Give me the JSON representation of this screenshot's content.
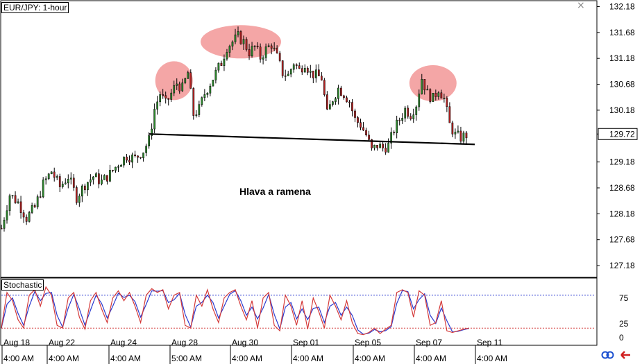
{
  "chart_data": {
    "type": "candlestick",
    "title": "EUR/JPY: 1-hour",
    "annotation": "Hlava a ramena",
    "ylim": [
      126.98,
      132.28
    ],
    "y_ticks": [
      132.18,
      131.68,
      131.18,
      130.68,
      130.18,
      129.72,
      129.18,
      128.68,
      128.18,
      127.68,
      127.18
    ],
    "current_price": 129.72,
    "x_tick_dates": [
      "Aug 18",
      "Aug 22",
      "Aug 24",
      "Aug 28",
      "Aug 30",
      "Sep 01",
      "Sep 05",
      "Sep 07",
      "Sep 11"
    ],
    "x_tick_times": [
      "4:00 AM",
      "4:00 AM",
      "4:00 AM",
      "5:00 AM",
      "4:00 AM",
      "4:00 AM",
      "4:00 AM",
      "4:00 AM",
      "4:00 AM"
    ],
    "close_path": [
      [
        0,
        127.9
      ],
      [
        3,
        128.55
      ],
      [
        6,
        128.4
      ],
      [
        9,
        128.1
      ],
      [
        12,
        128.3
      ],
      [
        15,
        128.75
      ],
      [
        18,
        129.0
      ],
      [
        21,
        128.7
      ],
      [
        24,
        128.9
      ],
      [
        27,
        128.5
      ],
      [
        30,
        128.75
      ],
      [
        33,
        128.9
      ],
      [
        36,
        128.8
      ],
      [
        39,
        128.95
      ],
      [
        42,
        129.15
      ],
      [
        45,
        129.3
      ],
      [
        48,
        129.25
      ],
      [
        51,
        129.4
      ],
      [
        53,
        129.6
      ],
      [
        55,
        130.2
      ],
      [
        57,
        130.5
      ],
      [
        59,
        130.3
      ],
      [
        61,
        130.5
      ],
      [
        63,
        130.7
      ],
      [
        65,
        130.6
      ],
      [
        67,
        130.9
      ],
      [
        69,
        130.1
      ],
      [
        71,
        130.2
      ],
      [
        73,
        130.5
      ],
      [
        75,
        130.7
      ],
      [
        77,
        130.9
      ],
      [
        79,
        131.1
      ],
      [
        81,
        131.4
      ],
      [
        83,
        131.5
      ],
      [
        85,
        131.6
      ],
      [
        87,
        131.5
      ],
      [
        89,
        131.3
      ],
      [
        91,
        131.4
      ],
      [
        93,
        131.2
      ],
      [
        95,
        131.35
      ],
      [
        97,
        131.45
      ],
      [
        99,
        131.2
      ],
      [
        101,
        130.9
      ],
      [
        103,
        130.85
      ],
      [
        105,
        131.1
      ],
      [
        107,
        130.95
      ],
      [
        109,
        131.1
      ],
      [
        111,
        130.9
      ],
      [
        113,
        130.85
      ],
      [
        115,
        130.8
      ],
      [
        117,
        130.1
      ],
      [
        119,
        130.4
      ],
      [
        121,
        130.6
      ],
      [
        123,
        130.5
      ],
      [
        125,
        130.35
      ],
      [
        127,
        130.0
      ],
      [
        129,
        129.9
      ],
      [
        131,
        129.7
      ],
      [
        133,
        129.4
      ],
      [
        135,
        129.5
      ],
      [
        137,
        129.45
      ],
      [
        139,
        129.5
      ],
      [
        141,
        129.8
      ],
      [
        143,
        130.0
      ],
      [
        145,
        130.2
      ],
      [
        147,
        130.1
      ],
      [
        149,
        130.3
      ],
      [
        151,
        130.8
      ],
      [
        153,
        130.5
      ],
      [
        155,
        130.4
      ],
      [
        157,
        130.6
      ],
      [
        159,
        130.4
      ],
      [
        161,
        129.9
      ],
      [
        163,
        129.7
      ],
      [
        165,
        129.65
      ],
      [
        167,
        129.7
      ]
    ],
    "neckline": [
      [
        53,
        129.72
      ],
      [
        170,
        129.52
      ]
    ],
    "highlights": [
      {
        "center": [
          62,
          130.75
        ],
        "label": "left-shoulder"
      },
      {
        "center": [
          86,
          131.5
        ],
        "label": "head"
      },
      {
        "center": [
          155,
          130.7
        ],
        "label": "right-shoulder"
      }
    ],
    "stochastic": {
      "label": "Stochastic",
      "ylim": [
        0,
        100
      ],
      "levels": [
        80,
        20
      ],
      "y_ticks": [
        75,
        25,
        0
      ],
      "k_path": [
        [
          0,
          20
        ],
        [
          2,
          85
        ],
        [
          4,
          70
        ],
        [
          6,
          35
        ],
        [
          8,
          20
        ],
        [
          10,
          80
        ],
        [
          12,
          90
        ],
        [
          14,
          60
        ],
        [
          16,
          95
        ],
        [
          18,
          80
        ],
        [
          20,
          25
        ],
        [
          22,
          20
        ],
        [
          24,
          75
        ],
        [
          26,
          85
        ],
        [
          28,
          40
        ],
        [
          30,
          18
        ],
        [
          32,
          70
        ],
        [
          34,
          85
        ],
        [
          36,
          55
        ],
        [
          38,
          30
        ],
        [
          40,
          75
        ],
        [
          42,
          88
        ],
        [
          44,
          70
        ],
        [
          46,
          85
        ],
        [
          48,
          60
        ],
        [
          50,
          30
        ],
        [
          52,
          80
        ],
        [
          54,
          92
        ],
        [
          56,
          85
        ],
        [
          58,
          90
        ],
        [
          60,
          55
        ],
        [
          62,
          80
        ],
        [
          64,
          85
        ],
        [
          66,
          25
        ],
        [
          68,
          20
        ],
        [
          70,
          80
        ],
        [
          72,
          60
        ],
        [
          74,
          90
        ],
        [
          76,
          55
        ],
        [
          78,
          30
        ],
        [
          80,
          75
        ],
        [
          82,
          85
        ],
        [
          84,
          90
        ],
        [
          86,
          60
        ],
        [
          88,
          35
        ],
        [
          90,
          70
        ],
        [
          92,
          20
        ],
        [
          94,
          75
        ],
        [
          96,
          85
        ],
        [
          98,
          25
        ],
        [
          100,
          15
        ],
        [
          102,
          80
        ],
        [
          104,
          60
        ],
        [
          106,
          25
        ],
        [
          108,
          70
        ],
        [
          110,
          18
        ],
        [
          112,
          75
        ],
        [
          114,
          50
        ],
        [
          116,
          20
        ],
        [
          118,
          80
        ],
        [
          120,
          60
        ],
        [
          122,
          35
        ],
        [
          124,
          70
        ],
        [
          126,
          30
        ],
        [
          128,
          10
        ],
        [
          130,
          8
        ],
        [
          132,
          12
        ],
        [
          134,
          20
        ],
        [
          136,
          10
        ],
        [
          138,
          18
        ],
        [
          140,
          25
        ],
        [
          142,
          85
        ],
        [
          144,
          90
        ],
        [
          146,
          85
        ],
        [
          148,
          40
        ],
        [
          150,
          88
        ],
        [
          152,
          80
        ],
        [
          154,
          25
        ],
        [
          156,
          30
        ],
        [
          158,
          70
        ],
        [
          160,
          15
        ],
        [
          162,
          12
        ],
        [
          164,
          15
        ],
        [
          166,
          18
        ],
        [
          168,
          20
        ]
      ]
    }
  },
  "ui": {
    "close_symbol": "×",
    "link_icon": "link-icon",
    "arrow_icon": "arrow-left-icon"
  },
  "colors": {
    "bull": "#2e8b2e",
    "bear": "#b22222",
    "highlight": "#f08080",
    "k_line": "#d43a3a",
    "d_line": "#2a3acf",
    "level_80": "#2a3acf",
    "level_20": "#d43a3a"
  }
}
